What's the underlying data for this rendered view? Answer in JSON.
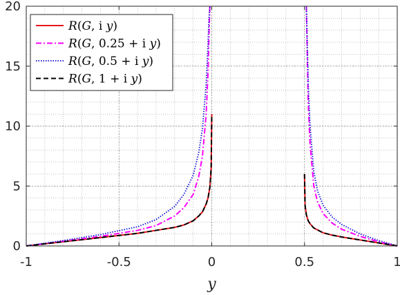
{
  "chart_data": {
    "type": "line",
    "xlabel": "y",
    "ylabel": "",
    "xlim": [
      -1,
      1
    ],
    "ylim": [
      0,
      20
    ],
    "xticks": [
      -1,
      -0.5,
      0,
      0.5,
      1
    ],
    "xtick_labels": [
      "-1",
      "-0.5",
      "0",
      "0.5",
      "1"
    ],
    "yticks": [
      0,
      5,
      10,
      15,
      20
    ],
    "ytick_labels": [
      "0",
      "5",
      "10",
      "15",
      "20"
    ],
    "grid": true,
    "minor_grid": true,
    "legend_position": "top-left",
    "series": [
      {
        "name": "R(G, i y)",
        "color": "#e8141a",
        "dash": "solid",
        "segments": [
          {
            "x": [
              -1,
              -0.8,
              -0.6,
              -0.4,
              -0.3,
              -0.2,
              -0.15,
              -0.1,
              -0.07,
              -0.05,
              -0.03,
              -0.02,
              -0.01,
              -0.003,
              0
            ],
            "y": [
              0,
              0.35,
              0.7,
              1.05,
              1.3,
              1.55,
              1.75,
              2.1,
              2.5,
              2.85,
              3.5,
              4.0,
              4.9,
              6.5,
              11
            ]
          },
          {
            "x": [
              0.5,
              0.503,
              0.51,
              0.52,
              0.53,
              0.55,
              0.6,
              0.65,
              0.7,
              0.8,
              0.9,
              1
            ],
            "y": [
              6,
              3.4,
              2.6,
              2.1,
              1.85,
              1.5,
              1.1,
              0.9,
              0.75,
              0.5,
              0.25,
              0
            ]
          }
        ]
      },
      {
        "name": "R(G, 0.25 + i y)",
        "color": "#ff00ff",
        "dash": "dashdot",
        "segments": [
          {
            "x": [
              -1,
              -0.8,
              -0.6,
              -0.4,
              -0.3,
              -0.2,
              -0.15,
              -0.1,
              -0.07,
              -0.05,
              -0.03,
              -0.02,
              -0.015,
              -0.01
            ],
            "y": [
              0,
              0.4,
              0.8,
              1.3,
              1.7,
              2.5,
              3.2,
              4.3,
              5.8,
              7.5,
              11,
              14.5,
              17.5,
              20
            ]
          },
          {
            "x": [
              0.51,
              0.52,
              0.53,
              0.55,
              0.57,
              0.6,
              0.65,
              0.7,
              0.8,
              0.9,
              1
            ],
            "y": [
              20,
              12,
              8.5,
              5,
              3.7,
              2.7,
              1.9,
              1.4,
              0.8,
              0.35,
              0
            ]
          }
        ]
      },
      {
        "name": "R(G, 0.5 + i y)",
        "color": "#1f1fd6",
        "dash": "dotted",
        "segments": [
          {
            "x": [
              -1,
              -0.8,
              -0.6,
              -0.4,
              -0.3,
              -0.2,
              -0.15,
              -0.1,
              -0.07,
              -0.05,
              -0.03,
              -0.02,
              -0.015,
              -0.01
            ],
            "y": [
              0,
              0.45,
              0.95,
              1.6,
              2.2,
              3.3,
              4.3,
              5.9,
              7.8,
              9.8,
              13.5,
              16.8,
              19,
              20
            ]
          },
          {
            "x": [
              0.51,
              0.52,
              0.53,
              0.55,
              0.57,
              0.6,
              0.65,
              0.7,
              0.8,
              0.9,
              1
            ],
            "y": [
              20,
              13.5,
              10,
              6.2,
              4.6,
              3.4,
              2.4,
              1.8,
              1.0,
              0.45,
              0
            ]
          }
        ]
      },
      {
        "name": "R(G, 1 + i y)",
        "color": "#000000",
        "dash": "dashed",
        "segments": [
          {
            "x": [
              -1,
              -0.8,
              -0.6,
              -0.4,
              -0.3,
              -0.2,
              -0.15,
              -0.1,
              -0.07,
              -0.05,
              -0.03,
              -0.02,
              -0.01,
              -0.003,
              0
            ],
            "y": [
              0,
              0.35,
              0.7,
              1.05,
              1.3,
              1.55,
              1.75,
              2.1,
              2.5,
              2.85,
              3.5,
              4.0,
              4.9,
              6.5,
              11
            ]
          },
          {
            "x": [
              0.5,
              0.503,
              0.51,
              0.52,
              0.53,
              0.55,
              0.6,
              0.65,
              0.7,
              0.8,
              0.9,
              1
            ],
            "y": [
              6,
              3.4,
              2.6,
              2.1,
              1.85,
              1.5,
              1.1,
              0.9,
              0.75,
              0.5,
              0.25,
              0
            ]
          }
        ]
      }
    ],
    "legend_entries": [
      {
        "parts": [
          {
            "t": "R",
            "i": true
          },
          {
            "t": "(",
            "i": false
          },
          {
            "t": "G",
            "i": true
          },
          {
            "t": ", i ",
            "i": false
          },
          {
            "t": "y",
            "i": true
          },
          {
            "t": ")",
            "i": false
          }
        ]
      },
      {
        "parts": [
          {
            "t": "R",
            "i": true
          },
          {
            "t": "(",
            "i": false
          },
          {
            "t": "G",
            "i": true
          },
          {
            "t": ", 0.25 + i ",
            "i": false
          },
          {
            "t": "y",
            "i": true
          },
          {
            "t": ")",
            "i": false
          }
        ]
      },
      {
        "parts": [
          {
            "t": "R",
            "i": true
          },
          {
            "t": "(",
            "i": false
          },
          {
            "t": "G",
            "i": true
          },
          {
            "t": ", 0.5 + i ",
            "i": false
          },
          {
            "t": "y",
            "i": true
          },
          {
            "t": ")",
            "i": false
          }
        ]
      },
      {
        "parts": [
          {
            "t": "R",
            "i": true
          },
          {
            "t": "(",
            "i": false
          },
          {
            "t": "G",
            "i": true
          },
          {
            "t": ", 1 + i ",
            "i": false
          },
          {
            "t": "y",
            "i": true
          },
          {
            "t": ")",
            "i": false
          }
        ]
      }
    ]
  }
}
